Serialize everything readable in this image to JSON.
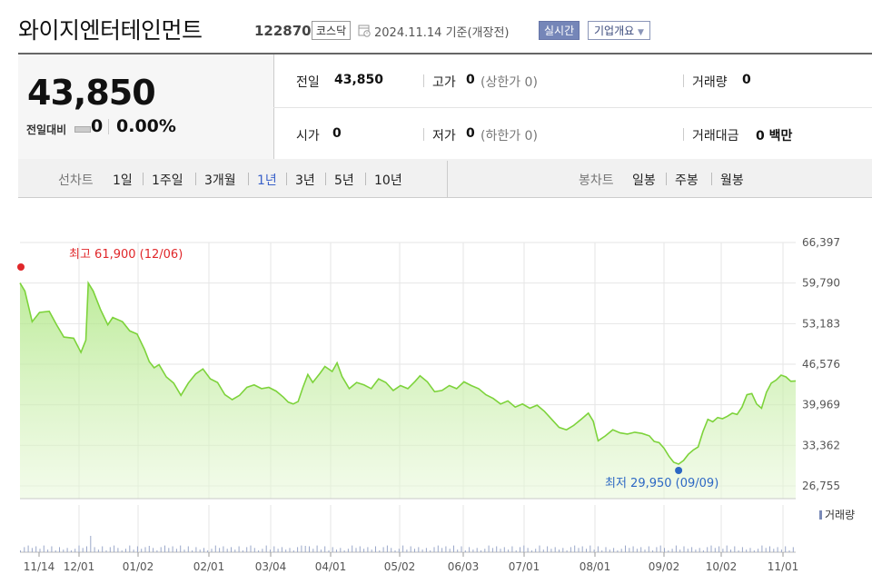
{
  "header": {
    "title": "와이지엔터테인먼트",
    "code": "122870",
    "market": "코스닥",
    "date": "2024.11.14 기준(개장전)",
    "realtime_label": "실시간",
    "company_label": "기업개요"
  },
  "quote": {
    "price": "43,850",
    "change_label": "전일대비",
    "change": "0",
    "change_pct": "0.00%",
    "prev_close_label": "전일",
    "prev_close": "43,850",
    "high_label": "고가",
    "high": "0",
    "upper_limit": "(상한가 0)",
    "volume_label": "거래량",
    "volume": "0",
    "open_label": "시가",
    "open": "0",
    "low_label": "저가",
    "low": "0",
    "lower_limit": "(하한가 0)",
    "amount_label": "거래대금",
    "amount": "0 백만"
  },
  "tabs": {
    "line_label": "선차트",
    "line_periods": [
      "1일",
      "1주일",
      "3개월",
      "1년",
      "3년",
      "5년",
      "10년"
    ],
    "selected_period": "1년",
    "candle_label": "봉차트",
    "candle_periods": [
      "일봉",
      "주봉",
      "월봉"
    ]
  },
  "colors": {
    "line": "#7dd33b",
    "high": "#e0272a",
    "low": "#2d68c4",
    "selected_tab": "#3b62c9"
  },
  "chart_data": {
    "type": "area",
    "y_ticks": [
      "66,397",
      "59,790",
      "53,183",
      "46,576",
      "39,969",
      "33,362",
      "26,755"
    ],
    "ylim": [
      26755,
      66397
    ],
    "x_ticks": [
      "11/14",
      "12/01",
      "01/02",
      "02/01",
      "03/04",
      "04/01",
      "05/02",
      "06/03",
      "07/01",
      "08/01",
      "09/02",
      "10/02",
      "11/01"
    ],
    "grid": true,
    "high_annotation": "최고 61,900 (12/06)",
    "low_annotation": "최저 29,950 (09/09)",
    "volume_label": "거래량",
    "series": [
      {
        "values": [
          [
            0,
            59800
          ],
          [
            2,
            58500
          ],
          [
            5,
            53500
          ],
          [
            8,
            55000
          ],
          [
            12,
            55200
          ],
          [
            15,
            53000
          ],
          [
            18,
            51000
          ],
          [
            22,
            50800
          ],
          [
            25,
            48500
          ],
          [
            27,
            50500
          ],
          [
            28,
            59800
          ],
          [
            30,
            58500
          ],
          [
            33,
            55500
          ],
          [
            36,
            53000
          ],
          [
            38,
            54200
          ],
          [
            42,
            53500
          ],
          [
            45,
            52000
          ],
          [
            48,
            51500
          ],
          [
            51,
            49000
          ],
          [
            53,
            47000
          ],
          [
            55,
            46000
          ],
          [
            57,
            46500
          ],
          [
            60,
            44500
          ],
          [
            63,
            43500
          ],
          [
            66,
            41500
          ],
          [
            69,
            43500
          ],
          [
            72,
            45000
          ],
          [
            75,
            45800
          ],
          [
            78,
            44200
          ],
          [
            81,
            43600
          ],
          [
            84,
            41600
          ],
          [
            87,
            40800
          ],
          [
            90,
            41500
          ],
          [
            93,
            42800
          ],
          [
            96,
            43200
          ],
          [
            99,
            42600
          ],
          [
            102,
            42800
          ],
          [
            105,
            42200
          ],
          [
            108,
            41200
          ],
          [
            110,
            40400
          ],
          [
            112,
            40100
          ],
          [
            114,
            40500
          ],
          [
            116,
            42800
          ],
          [
            118,
            44900
          ],
          [
            120,
            43600
          ],
          [
            123,
            45100
          ],
          [
            125,
            46200
          ],
          [
            128,
            45400
          ],
          [
            130,
            46800
          ],
          [
            132,
            44600
          ],
          [
            135,
            42600
          ],
          [
            138,
            43600
          ],
          [
            141,
            43200
          ],
          [
            144,
            42600
          ],
          [
            147,
            44200
          ],
          [
            150,
            43600
          ],
          [
            153,
            42300
          ],
          [
            156,
            43100
          ],
          [
            159,
            42600
          ],
          [
            162,
            43800
          ],
          [
            164,
            44700
          ],
          [
            167,
            43700
          ],
          [
            170,
            42100
          ],
          [
            173,
            42300
          ],
          [
            176,
            43100
          ],
          [
            179,
            42600
          ],
          [
            182,
            43700
          ],
          [
            185,
            43100
          ],
          [
            188,
            42600
          ],
          [
            191,
            41600
          ],
          [
            194,
            41000
          ],
          [
            197,
            40100
          ],
          [
            200,
            40600
          ],
          [
            203,
            39600
          ],
          [
            206,
            40100
          ],
          [
            209,
            39400
          ],
          [
            212,
            39900
          ],
          [
            215,
            38900
          ],
          [
            218,
            37600
          ],
          [
            221,
            36300
          ],
          [
            224,
            35900
          ],
          [
            227,
            36600
          ],
          [
            230,
            37600
          ],
          [
            233,
            38600
          ],
          [
            235,
            37300
          ],
          [
            237,
            34100
          ],
          [
            240,
            34900
          ],
          [
            243,
            35900
          ],
          [
            246,
            35400
          ],
          [
            249,
            35200
          ],
          [
            252,
            35500
          ],
          [
            255,
            35300
          ],
          [
            258,
            34900
          ],
          [
            260,
            34000
          ],
          [
            262,
            33800
          ],
          [
            264,
            32900
          ],
          [
            266,
            31600
          ],
          [
            268,
            30600
          ],
          [
            270,
            30300
          ],
          [
            272,
            30900
          ],
          [
            274,
            31900
          ],
          [
            276,
            32600
          ],
          [
            278,
            33100
          ],
          [
            280,
            35600
          ],
          [
            282,
            37600
          ],
          [
            284,
            37200
          ],
          [
            286,
            37900
          ],
          [
            288,
            37700
          ],
          [
            290,
            38100
          ],
          [
            292,
            38600
          ],
          [
            294,
            38400
          ],
          [
            296,
            39600
          ],
          [
            298,
            41600
          ],
          [
            300,
            41800
          ],
          [
            302,
            40100
          ],
          [
            304,
            39400
          ],
          [
            306,
            42000
          ],
          [
            308,
            43500
          ],
          [
            310,
            44000
          ],
          [
            312,
            44800
          ],
          [
            314,
            44500
          ],
          [
            316,
            43800
          ],
          [
            318,
            43850
          ]
        ]
      }
    ]
  }
}
